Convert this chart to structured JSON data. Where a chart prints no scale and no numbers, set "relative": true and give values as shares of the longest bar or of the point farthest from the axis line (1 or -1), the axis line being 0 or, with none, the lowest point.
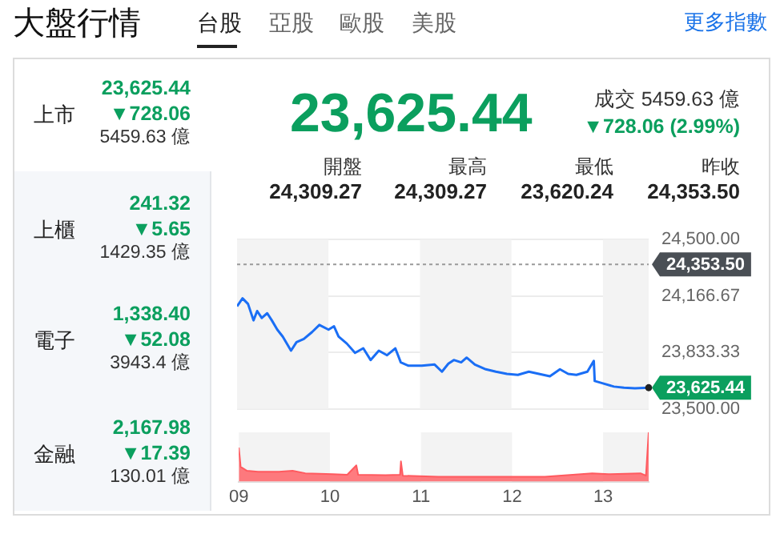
{
  "chart_data": [
    {
      "type": "other",
      "title": "大盤行情",
      "annotations": [
        "台股",
        "亞股",
        "歐股",
        "美股",
        "更多指數",
        "上市",
        "23,625.44",
        "▼728.06",
        "5459.63 億",
        "上櫃",
        "241.32",
        "▼5.65",
        "1429.35 億",
        "電子",
        "1,338.40",
        "▼52.08",
        "3943.4 億",
        "金融",
        "2,167.98",
        "▼17.39",
        "130.01 億",
        "23,625.44",
        "成交 5459.63 億",
        "▼728.06 (2.99%)",
        "開盤",
        "24,309.27",
        "最高",
        "24,309.27",
        "最低",
        "23,620.24",
        "昨收",
        "24,353.50"
      ]
    },
    {
      "type": "line",
      "color": "#1a6ef5",
      "x": [
        9.0,
        9.06,
        9.12,
        9.18,
        9.22,
        9.27,
        9.33,
        9.38,
        9.44,
        9.5,
        9.59,
        9.65,
        9.73,
        9.82,
        9.9,
        10.0,
        10.06,
        10.11,
        10.2,
        10.29,
        10.38,
        10.46,
        10.55,
        10.64,
        10.73,
        10.79,
        10.87,
        11.02,
        11.16,
        11.24,
        11.31,
        11.37,
        11.45,
        11.51,
        11.6,
        11.72,
        11.83,
        11.95,
        12.07,
        12.19,
        12.3,
        12.42,
        12.53,
        12.62,
        12.71,
        12.83,
        12.9,
        12.91,
        13.0,
        13.12,
        13.23,
        13.35,
        13.5
      ],
      "values": [
        24106,
        24153,
        24120,
        24023,
        24078,
        24037,
        24065,
        24023,
        23968,
        23927,
        23844,
        23894,
        23913,
        23954,
        23996,
        23968,
        23988,
        23927,
        23886,
        23831,
        23858,
        23789,
        23844,
        23817,
        23858,
        23775,
        23756,
        23756,
        23762,
        23720,
        23767,
        23789,
        23775,
        23803,
        23762,
        23734,
        23720,
        23707,
        23701,
        23720,
        23707,
        23693,
        23734,
        23707,
        23701,
        23720,
        23784,
        23665,
        23651,
        23632,
        23625,
        23622,
        23625.44
      ],
      "xlim": [
        9,
        13.5
      ],
      "ylim": [
        23500,
        24500
      ],
      "yticks": [
        {
          "value": 23500,
          "label": "23,500.00"
        },
        {
          "value": 23833.33,
          "label": "23,833.33"
        },
        {
          "value": 24166.67,
          "label": "24,166.67"
        },
        {
          "value": 24500,
          "label": "24,500.00"
        }
      ],
      "grid": "y",
      "tick_labels": "y",
      "bands": [
        {
          "axis": "x",
          "from": 9,
          "to": 10,
          "color": "#f3f3f3"
        },
        {
          "axis": "x",
          "from": 11,
          "to": 12,
          "color": "#f3f3f3"
        },
        {
          "axis": "x",
          "from": 13,
          "to": 13.5,
          "color": "#f3f3f3"
        }
      ],
      "ref_lines": [
        {
          "axis": "y",
          "value": 24353.5,
          "label": "24,353.50",
          "color": "#9a9a9a",
          "line_style": "dotted"
        }
      ],
      "annotations": [
        {
          "text": "23,625.44",
          "x": 13.5,
          "y": 23625.44
        }
      ]
    },
    {
      "type": "area",
      "color": "#ff5a5f",
      "relative": true,
      "x": [
        9.0,
        9.02,
        9.09,
        9.21,
        9.44,
        9.59,
        9.73,
        10.03,
        10.19,
        10.29,
        10.31,
        10.61,
        10.77,
        10.78,
        10.8,
        11.19,
        11.78,
        12.36,
        12.88,
        13.06,
        13.41,
        13.47,
        13.5
      ],
      "values": [
        0.69,
        0.3,
        0.22,
        0.2,
        0.2,
        0.22,
        0.17,
        0.15,
        0.14,
        0.33,
        0.14,
        0.13,
        0.14,
        0.41,
        0.12,
        0.1,
        0.1,
        0.1,
        0.17,
        0.15,
        0.17,
        0.12,
        1
      ],
      "xlim": [
        9,
        13.5
      ],
      "xticks": [
        {
          "value": 9,
          "label": "09"
        },
        {
          "value": 10,
          "label": "10"
        },
        {
          "value": 11,
          "label": "11"
        },
        {
          "value": 12,
          "label": "12"
        },
        {
          "value": 13,
          "label": "13"
        }
      ],
      "tick_labels": "x",
      "bands": [
        {
          "axis": "x",
          "from": 9,
          "to": 10,
          "color": "#f3f3f3"
        },
        {
          "axis": "x",
          "from": 11,
          "to": 12,
          "color": "#f3f3f3"
        },
        {
          "axis": "x",
          "from": 13,
          "to": 13.5,
          "color": "#f3f3f3"
        }
      ]
    }
  ]
}
